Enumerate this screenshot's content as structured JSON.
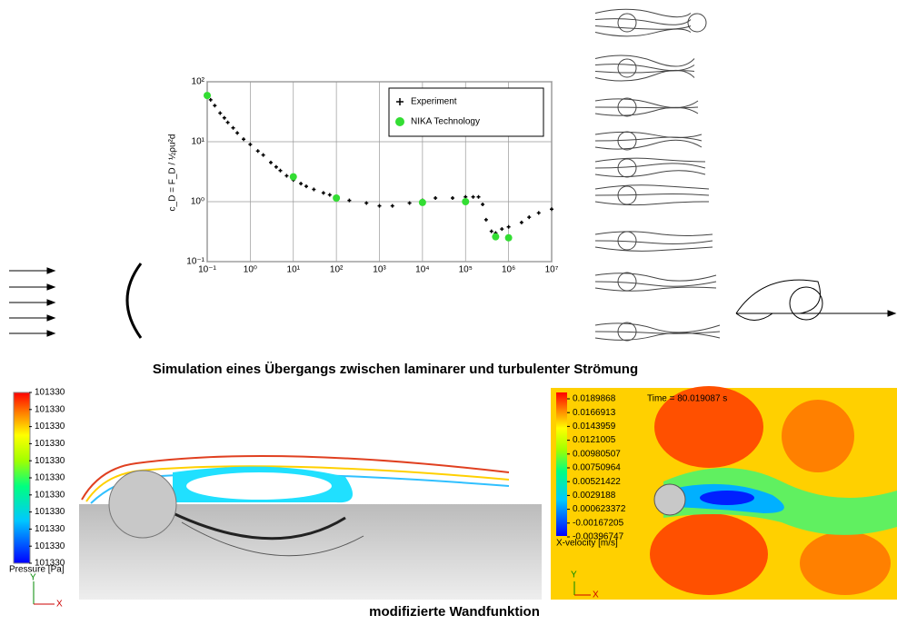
{
  "chart_data": {
    "type": "scatter",
    "ylabel": "c_D = F_D / ½ρu²d",
    "xlim": [
      0.1,
      10000000
    ],
    "ylim": [
      0.1,
      100
    ],
    "log_x": true,
    "log_y": true,
    "grid": true,
    "xticks": [
      {
        "value": 0.1,
        "label": "10⁻¹"
      },
      {
        "value": 1,
        "label": "10⁰"
      },
      {
        "value": 10,
        "label": "10¹"
      },
      {
        "value": 100,
        "label": "10²"
      },
      {
        "value": 1000,
        "label": "10³"
      },
      {
        "value": 10000,
        "label": "10⁴"
      },
      {
        "value": 100000,
        "label": "10⁵"
      },
      {
        "value": 1000000,
        "label": "10⁶"
      },
      {
        "value": 10000000,
        "label": "10⁷"
      }
    ],
    "yticks": [
      {
        "value": 0.1,
        "label": "10⁻¹"
      },
      {
        "value": 1,
        "label": "10⁰"
      },
      {
        "value": 10,
        "label": "10¹"
      },
      {
        "value": 100,
        "label": "10²"
      }
    ],
    "legend": "upper right",
    "series": [
      {
        "name": "Experiment",
        "color": "#000000",
        "x": [
          0.1,
          0.12,
          0.15,
          0.2,
          0.25,
          0.3,
          0.4,
          0.5,
          0.7,
          1,
          1.5,
          2,
          3,
          4,
          5,
          7,
          10,
          15,
          20,
          30,
          50,
          70,
          100,
          200,
          500,
          1000,
          2000,
          5000,
          10000,
          20000,
          50000,
          100000,
          150000,
          200000,
          250000,
          300000,
          400000,
          500000,
          700000,
          1000000,
          2000000,
          3000000,
          5000000,
          10000000
        ],
        "values": [
          60,
          50,
          40,
          30,
          25,
          21,
          17,
          14,
          11,
          9,
          7,
          6,
          4.5,
          3.8,
          3.3,
          2.7,
          2.3,
          2,
          1.8,
          1.6,
          1.4,
          1.3,
          1.15,
          1.05,
          0.95,
          0.85,
          0.85,
          0.95,
          1.05,
          1.15,
          1.15,
          1.2,
          1.2,
          1.2,
          0.9,
          0.5,
          0.32,
          0.3,
          0.35,
          0.38,
          0.45,
          0.55,
          0.65,
          0.75
        ]
      },
      {
        "name": "NIKA Technology",
        "color": "#33dd33",
        "x": [
          0.1,
          10,
          100,
          10000,
          100000,
          500000,
          1000000
        ],
        "values": [
          59,
          2.6,
          1.15,
          0.97,
          1.0,
          0.26,
          0.25
        ]
      }
    ]
  },
  "caption_top": "Simulation eines Übergangs zwischen laminarer und turbulenter Strömung",
  "caption_bottom": "modifizierte Wandfunktion",
  "left_sim": {
    "legend_values": [
      "101330",
      "101330",
      "101330",
      "101330",
      "101330",
      "101330",
      "101330",
      "101330",
      "101330",
      "101330",
      "101330"
    ],
    "legend_title": "Pressure [Pa]",
    "axis_y": "Y",
    "axis_x": "X"
  },
  "right_sim": {
    "time": "Time = 80.019087 s",
    "legend_values": [
      "0.0189868",
      "0.0166913",
      "0.0143959",
      "0.0121005",
      "0.00980507",
      "0.00750964",
      "0.00521422",
      "0.0029188",
      "0.000623372",
      "-0.00167205",
      "-0.00396747"
    ],
    "legend_title": "X-velocity [m/s]",
    "axis_y": "Y",
    "axis_x": "X"
  }
}
